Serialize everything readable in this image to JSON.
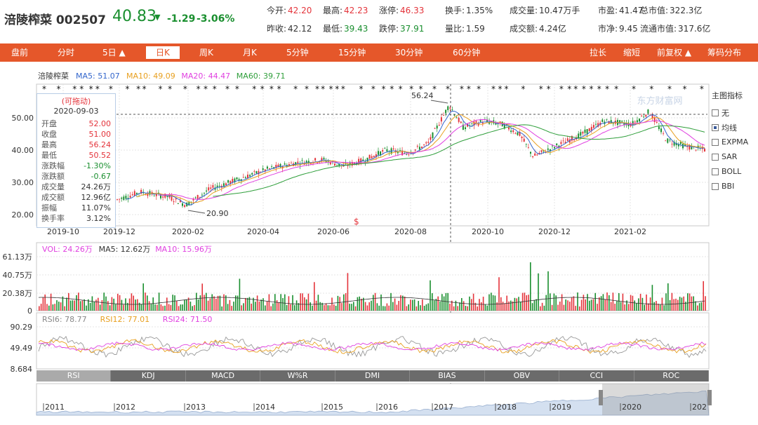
{
  "quote": {
    "name": "涪陵榨菜",
    "code": "002507",
    "price": "40.83",
    "arrow": "▼",
    "change": "-1.29",
    "change_pct": "-3.06%",
    "fields": [
      {
        "label": "今开:",
        "value": "42.20",
        "color": "red"
      },
      {
        "label": "最高:",
        "value": "42.23",
        "color": "red"
      },
      {
        "label": "涨停:",
        "value": "46.33",
        "color": "red"
      },
      {
        "label": "换手:",
        "value": "1.35%",
        "color": "blk"
      },
      {
        "label": "成交量:",
        "value": "10.47万手",
        "color": "blk"
      },
      {
        "label": "市盈:",
        "value": "41.47",
        "color": "blk"
      },
      {
        "label": "总市值:",
        "value": "322.3亿",
        "color": "blk"
      },
      {
        "label": "昨收:",
        "value": "42.12",
        "color": "blk"
      },
      {
        "label": "最低:",
        "value": "39.43",
        "color": "grn"
      },
      {
        "label": "跌停:",
        "value": "37.91",
        "color": "grn"
      },
      {
        "label": "量比:",
        "value": "1.59",
        "color": "blk"
      },
      {
        "label": "成交额:",
        "value": "4.24亿",
        "color": "blk"
      },
      {
        "label": "市净:",
        "value": "9.45",
        "color": "blk"
      },
      {
        "label": "流通市值:",
        "value": "317.6亿",
        "color": "blk"
      }
    ]
  },
  "nav": {
    "tabs": [
      "盘前",
      "分时",
      "5日 ▲",
      "日K",
      "周K",
      "月K",
      "5分钟",
      "15分钟",
      "30分钟",
      "60分钟"
    ],
    "selected": "日K",
    "right": [
      "拉长",
      "缩短",
      "前复权 ▲",
      "筹码分布"
    ]
  },
  "main_chart": {
    "stock_label": "涪陵榨菜",
    "ma": [
      {
        "label": "MA5: 51.07",
        "color": "#3366cc"
      },
      {
        "label": "MA10: 49.09",
        "color": "#e8a020"
      },
      {
        "label": "MA20: 44.47",
        "color": "#e040e0"
      },
      {
        "label": "MA60: 39.71",
        "color": "#2e9e3a"
      }
    ],
    "y_ticks": [
      "50.00",
      "40.00",
      "30.00",
      "20.00"
    ],
    "x_ticks": [
      "2019-10",
      "2019-12",
      "2020-02",
      "2020-04",
      "2020-06",
      "2020-08",
      "2020-10",
      "2020-12",
      "2021-02"
    ],
    "high_label": "56.24",
    "low_label": "20.90",
    "watermark": "东方财富网"
  },
  "tooltip": {
    "header": "(可拖动)",
    "date": "2020-09-03",
    "rows": [
      {
        "label": "开盘",
        "value": "52.00",
        "color": "red"
      },
      {
        "label": "收盘",
        "value": "51.00",
        "color": "red"
      },
      {
        "label": "最高",
        "value": "56.24",
        "color": "red"
      },
      {
        "label": "最低",
        "value": "50.52",
        "color": "red"
      },
      {
        "label": "涨跌幅",
        "value": "-1.30%",
        "color": "grn"
      },
      {
        "label": "涨跌额",
        "value": "-0.67",
        "color": "grn"
      },
      {
        "label": "成交量",
        "value": "24.26万",
        "color": "blk"
      },
      {
        "label": "成交额",
        "value": "12.96亿",
        "color": "blk"
      },
      {
        "label": "振幅",
        "value": "11.07%",
        "color": "blk"
      },
      {
        "label": "换手率",
        "value": "3.12%",
        "color": "blk"
      }
    ]
  },
  "indicator_panel": {
    "title": "主图指标",
    "items": [
      {
        "label": "无",
        "checked": false
      },
      {
        "label": "均线",
        "checked": true
      },
      {
        "label": "EXPMA",
        "checked": false
      },
      {
        "label": "SAR",
        "checked": false
      },
      {
        "label": "BOLL",
        "checked": false
      },
      {
        "label": "BBI",
        "checked": false
      }
    ]
  },
  "volume_chart": {
    "legend": [
      {
        "label": "VOL: 24.26万",
        "color": "#e040e0"
      },
      {
        "label": "MA5: 12.62万",
        "color": "#333333"
      },
      {
        "label": "MA10: 15.96万",
        "color": "#e040e0"
      }
    ],
    "y_ticks": [
      "61.13万",
      "40.75万",
      "20.38万",
      "0"
    ]
  },
  "rsi_chart": {
    "legend": [
      {
        "label": "RSI6: 78.77",
        "color": "#888888"
      },
      {
        "label": "RSI12: 77.01",
        "color": "#e8a020"
      },
      {
        "label": "RSI24: 71.50",
        "color": "#e040e0"
      }
    ],
    "y_ticks": [
      "90.29",
      "49.49",
      "8.684"
    ]
  },
  "indicator_tabs": {
    "tabs": [
      "RSI",
      "KDJ",
      "MACD",
      "W%R",
      "DMI",
      "BIAS",
      "OBV",
      "CCI",
      "ROC"
    ],
    "selected": "RSI"
  },
  "timeline": {
    "years": [
      "2011",
      "2012",
      "2013",
      "2014",
      "2015",
      "2016",
      "2017",
      "2018",
      "2019",
      "2020",
      "202"
    ]
  },
  "colors": {
    "accent": "#e5572a",
    "up": "#e4343b",
    "down": "#1a8f2f"
  }
}
